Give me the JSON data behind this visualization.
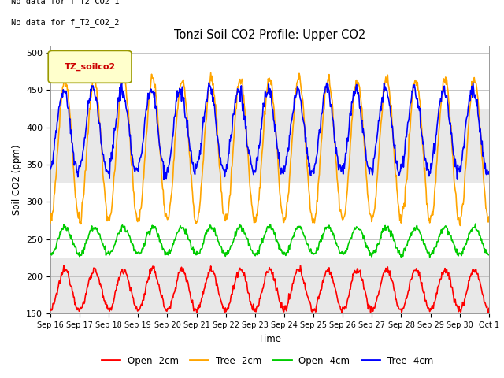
{
  "title": "Tonzi Soil CO2 Profile: Upper CO2",
  "ylabel": "Soil CO2 (ppm)",
  "xlabel": "Time",
  "ylim": [
    150,
    510
  ],
  "yticks": [
    150,
    200,
    250,
    300,
    350,
    400,
    450,
    500
  ],
  "no_data_text": [
    "No data for f_T2_CO2_1",
    "No data for f_T2_CO2_2"
  ],
  "legend_label": "TZ_soilco2",
  "series_labels": [
    "Open -2cm",
    "Tree -2cm",
    "Open -4cm",
    "Tree -4cm"
  ],
  "series_colors": [
    "#ff0000",
    "#ffa500",
    "#00cc00",
    "#0000ff"
  ],
  "xtick_labels": [
    "Sep 16",
    "Sep 17",
    "Sep 18",
    "Sep 19",
    "Sep 20",
    "Sep 21",
    "Sep 22",
    "Sep 23",
    "Sep 24",
    "Sep 25",
    "Sep 26",
    "Sep 27",
    "Sep 28",
    "Sep 29",
    "Sep 30",
    "Oct 1"
  ],
  "band_color": "#e8e8e8",
  "figsize": [
    6.4,
    4.8
  ],
  "dpi": 100
}
